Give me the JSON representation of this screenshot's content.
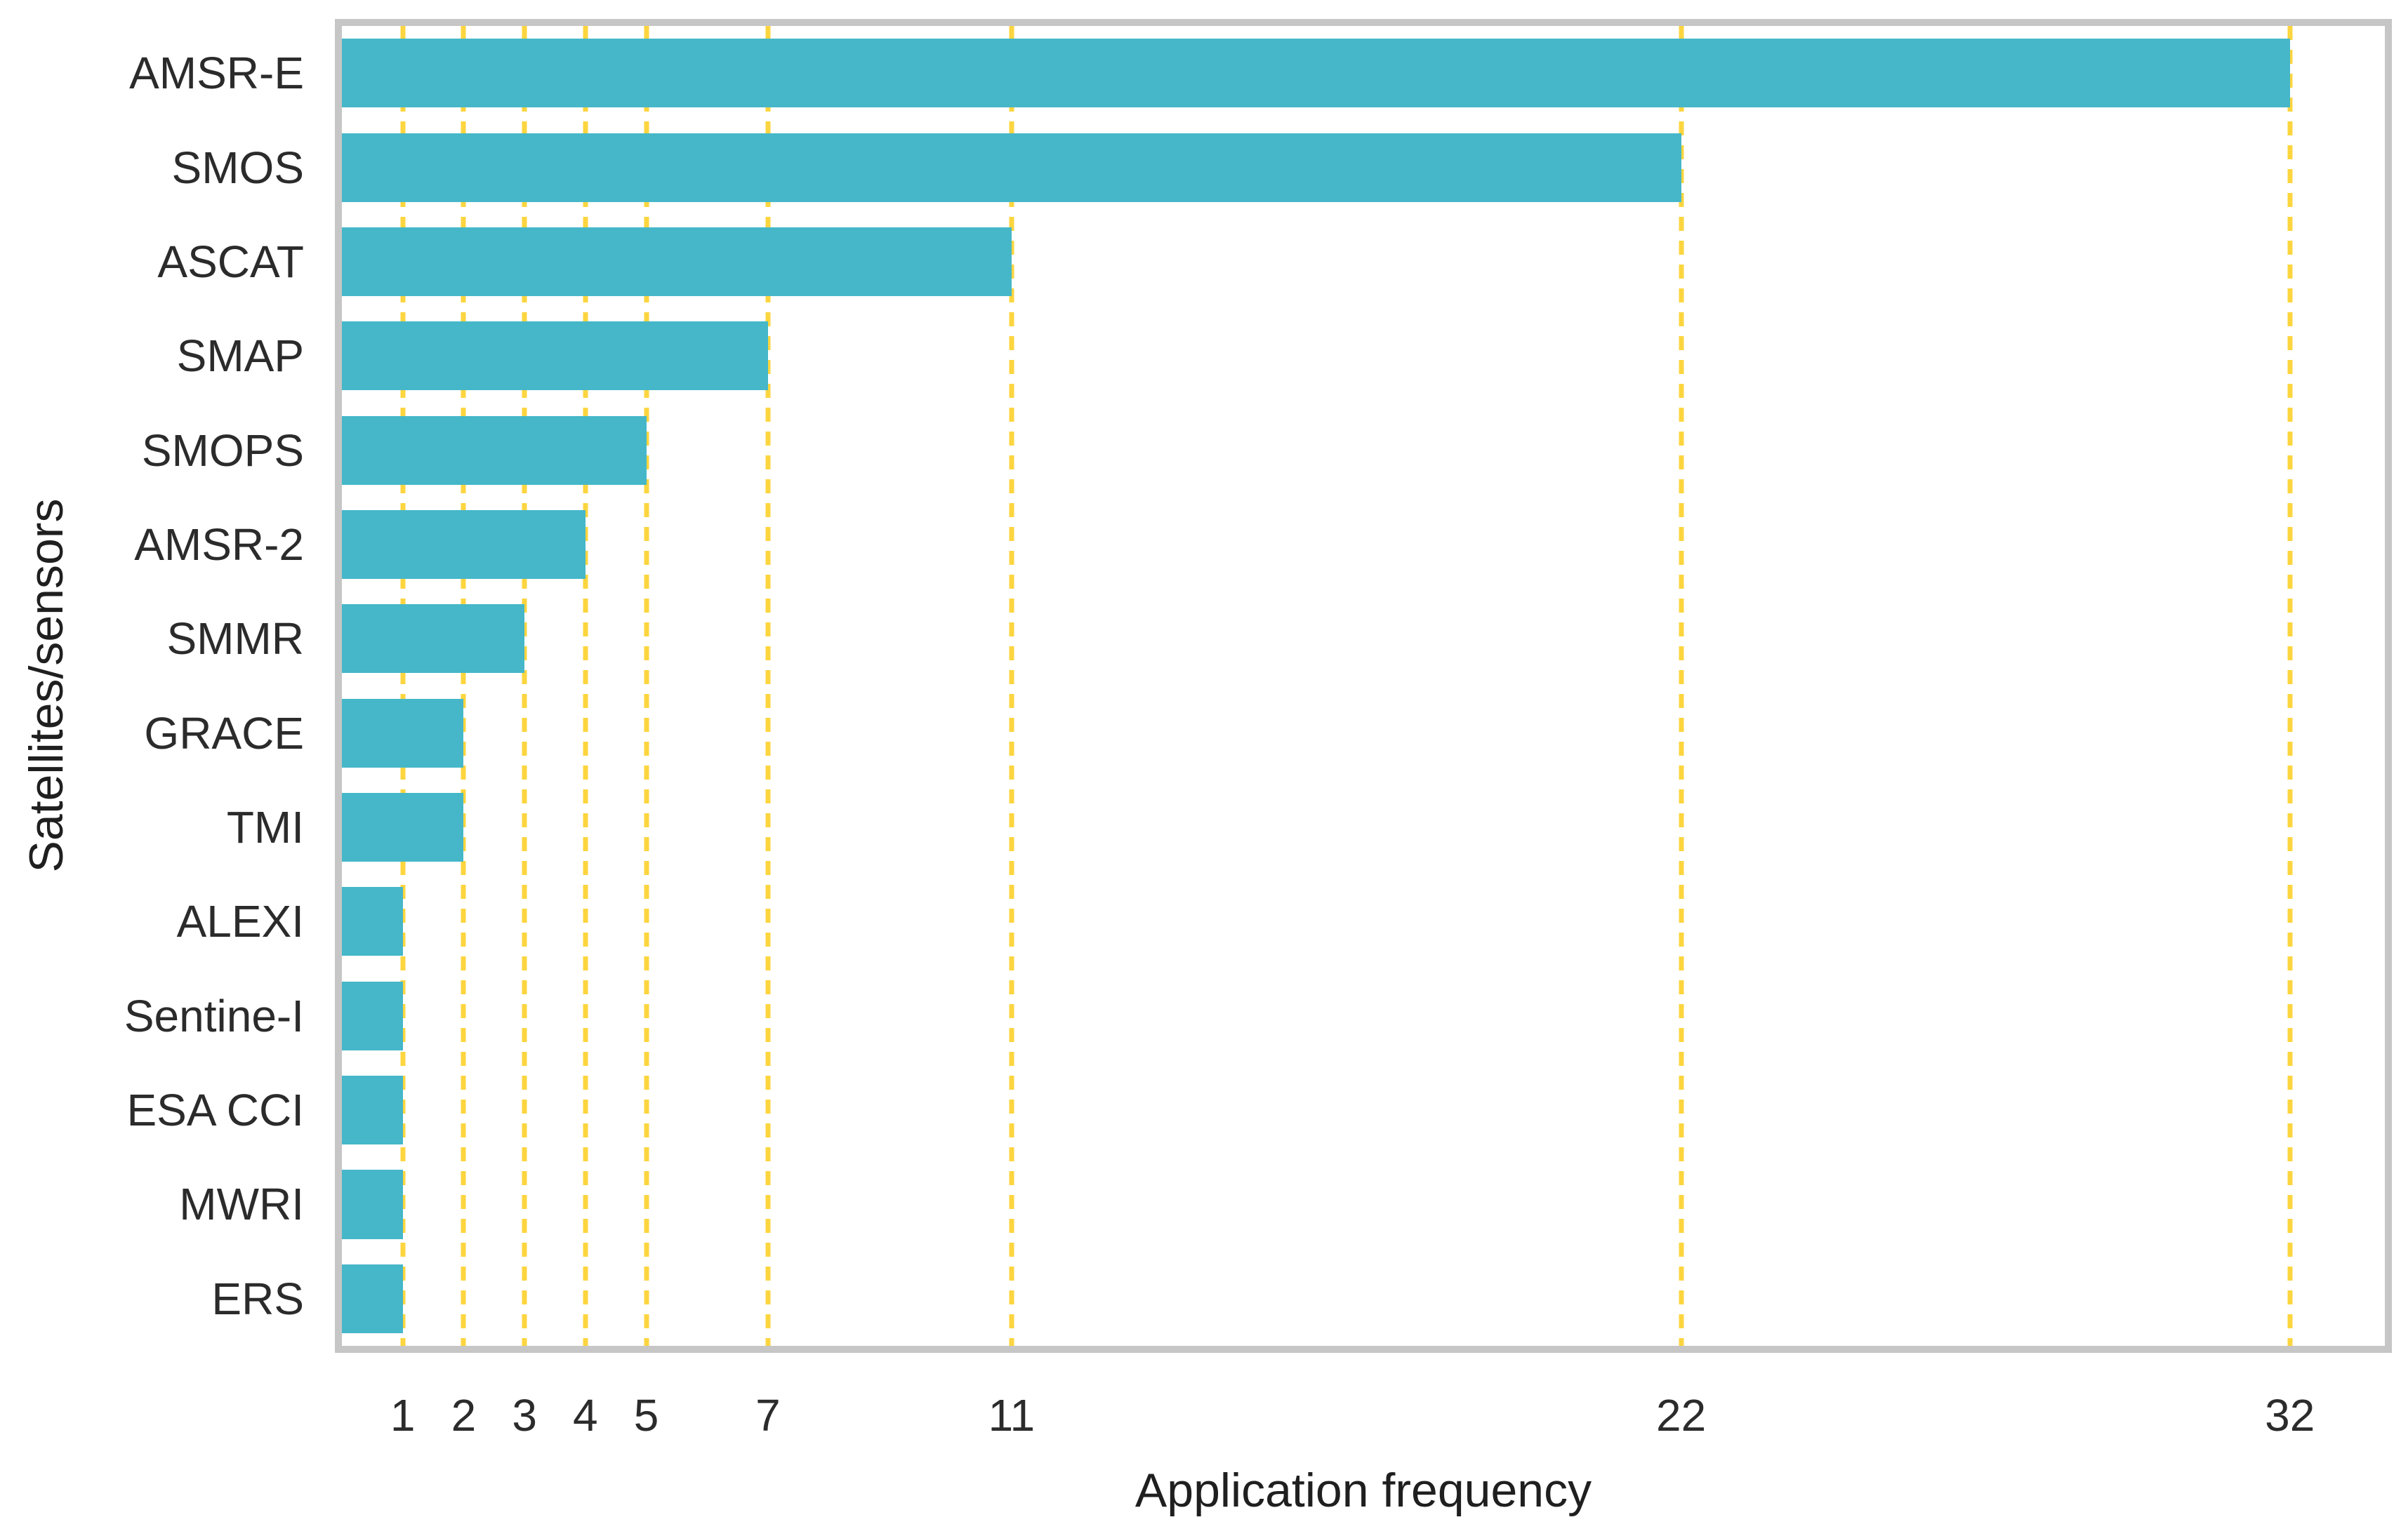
{
  "chart_data": {
    "type": "bar",
    "orientation": "horizontal",
    "categories": [
      "AMSR-E",
      "SMOS",
      "ASCAT",
      "SMAP",
      "SMOPS",
      "AMSR-2",
      "SMMR",
      "GRACE",
      "TMI",
      "ALEXI",
      "Sentine-I",
      "ESA CCI",
      "MWRI",
      "ERS"
    ],
    "values": [
      32,
      22,
      11,
      7,
      5,
      4,
      3,
      2,
      2,
      1,
      1,
      1,
      1,
      1
    ],
    "title": "",
    "xlabel": "Application frequency",
    "ylabel": "Satellites/sensors",
    "x_ticks": [
      1,
      2,
      3,
      4,
      5,
      7,
      11,
      22,
      32
    ],
    "xlim": [
      0,
      33.56
    ],
    "grid": "vertical-dashed-at-tick-values",
    "legend": "none",
    "colors": {
      "bar": "#45B7C9",
      "gridline": "#FCD53F",
      "panel_border": "#C6C6C6",
      "text": "#2B2B2B",
      "background": "#FFFFFF"
    }
  }
}
